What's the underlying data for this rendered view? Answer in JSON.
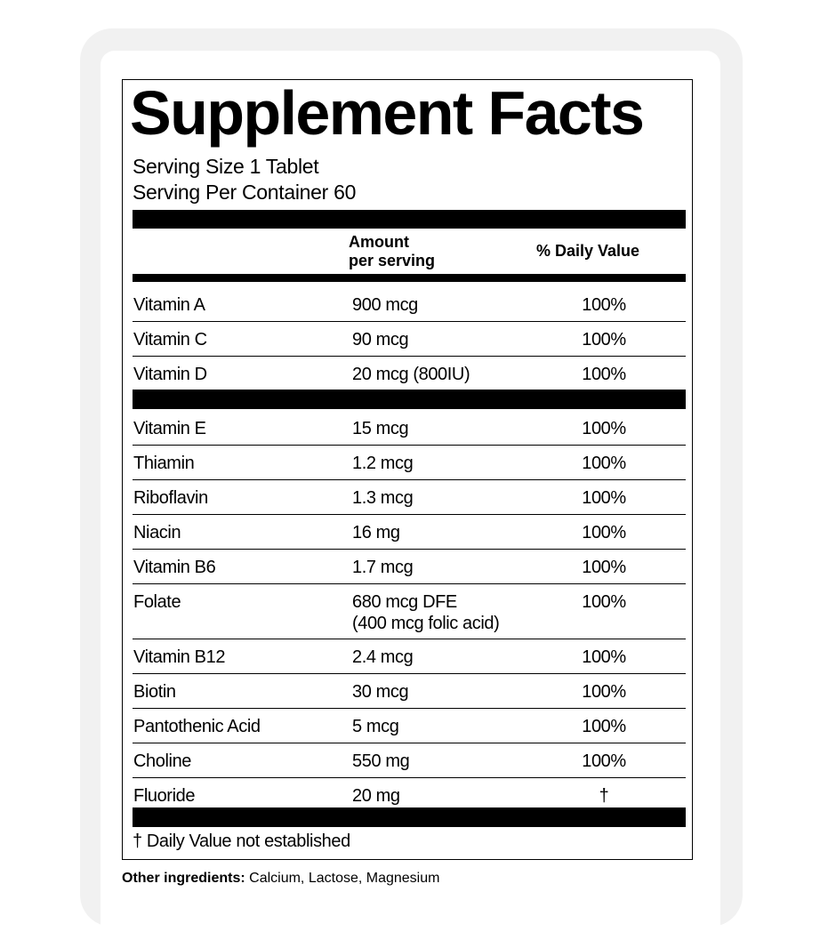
{
  "header": {
    "title": "Supplement Facts",
    "serving_size": "Serving Size 1 Tablet",
    "servings_per_container": "Serving Per Container 60"
  },
  "table": {
    "columns": [
      "Amount\nper serving",
      "% Daily Value"
    ],
    "groups": [
      [
        [
          "Vitamin A",
          "900 mcg",
          "100%"
        ],
        [
          "Vitamin C",
          "90 mcg",
          "100%"
        ],
        [
          "Vitamin D",
          "20 mcg (800IU)",
          "100%"
        ]
      ],
      [
        [
          "Vitamin E",
          "15 mcg",
          "100%"
        ],
        [
          "Thiamin",
          "1.2 mcg",
          "100%"
        ],
        [
          "Riboflavin",
          "1.3 mcg",
          "100%"
        ],
        [
          "Niacin",
          "16 mg",
          "100%"
        ],
        [
          "Vitamin B6",
          "1.7 mcg",
          "100%"
        ],
        [
          "Folate",
          "680 mcg DFE\n(400 mcg folic acid)",
          "100%"
        ],
        [
          "Vitamin B12",
          "2.4 mcg",
          "100%"
        ],
        [
          "Biotin",
          "30 mcg",
          "100%"
        ],
        [
          "Pantothenic Acid",
          "5 mcg",
          "100%"
        ],
        [
          "Choline",
          "550 mg",
          "100%"
        ],
        [
          "Fluoride",
          "20 mg",
          "†"
        ]
      ]
    ]
  },
  "footnote": "† Daily Value not established",
  "other_ingredients": {
    "label": "Other ingredients:",
    "text": "Calcium, Lactose, Magnesium"
  }
}
